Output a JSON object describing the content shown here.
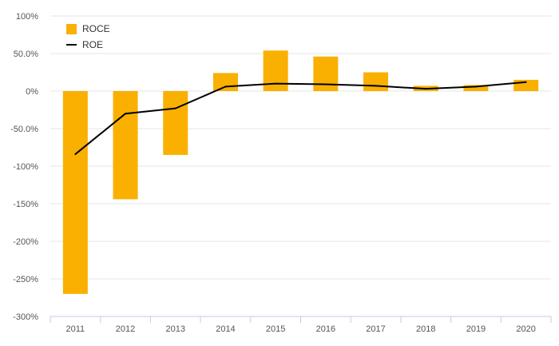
{
  "chart_data": {
    "type": "bar",
    "categories": [
      "2011",
      "2012",
      "2013",
      "2014",
      "2015",
      "2016",
      "2017",
      "2018",
      "2019",
      "2020"
    ],
    "series": [
      {
        "name": "ROCE",
        "type": "bar",
        "color": "#F9B000",
        "values": [
          -270,
          -144,
          -85,
          24,
          54,
          46,
          25,
          7,
          8,
          15
        ]
      },
      {
        "name": "ROE",
        "type": "line",
        "color": "#000000",
        "values": [
          -84,
          -30,
          -23,
          6,
          10,
          9,
          7,
          3,
          6,
          12
        ]
      }
    ],
    "ylim": [
      -300,
      100
    ],
    "yticks": [
      {
        "value": 100,
        "label": "100%"
      },
      {
        "value": 50,
        "label": "50.0%"
      },
      {
        "value": 0,
        "label": "0%"
      },
      {
        "value": -50,
        "label": "-50.0%"
      },
      {
        "value": -100,
        "label": "-100%"
      },
      {
        "value": -150,
        "label": "-150%"
      },
      {
        "value": -200,
        "label": "-200%"
      },
      {
        "value": -250,
        "label": "-250%"
      },
      {
        "value": -300,
        "label": "-300%"
      }
    ],
    "grid": true,
    "legend_position": "top-left",
    "title": "",
    "xlabel": "",
    "ylabel": ""
  }
}
